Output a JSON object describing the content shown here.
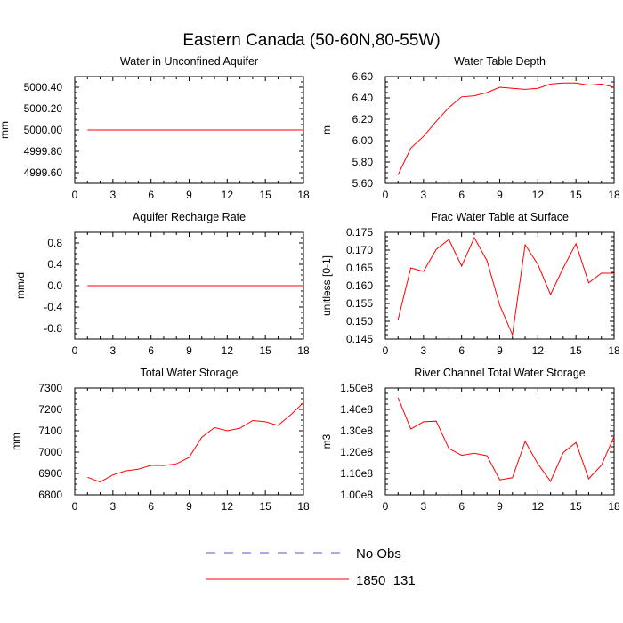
{
  "figure": {
    "title": "Eastern Canada (50-60N,80-55W)"
  },
  "legend": {
    "entries": [
      {
        "label": "No Obs",
        "color": "#5555cc",
        "dash": "dashed"
      },
      {
        "label": "1850_131",
        "color": "#ff0000",
        "dash": "solid"
      }
    ]
  },
  "chart_data": [
    {
      "type": "line",
      "title": "Water in Unconfined Aquifer",
      "ylabel": "mm",
      "xlim": [
        0,
        18
      ],
      "xticks": [
        0,
        3,
        6,
        9,
        12,
        15,
        18
      ],
      "ylim": [
        4999.5,
        5000.5
      ],
      "yticks": [
        4999.6,
        4999.8,
        5000.0,
        5000.2,
        5000.4
      ],
      "ytick_labels": [
        "4999.60",
        "4999.80",
        "5000.00",
        "5000.20",
        "5000.40"
      ],
      "series": [
        {
          "name": "1850_131",
          "color": "#ff0000",
          "x": [
            1,
            2,
            3,
            4,
            5,
            6,
            7,
            8,
            9,
            10,
            11,
            12,
            13,
            14,
            15,
            16,
            17,
            18
          ],
          "y": [
            5000,
            5000,
            5000,
            5000,
            5000,
            5000,
            5000,
            5000,
            5000,
            5000,
            5000,
            5000,
            5000,
            5000,
            5000,
            5000,
            5000,
            5000
          ]
        }
      ]
    },
    {
      "type": "line",
      "title": "Water Table Depth",
      "ylabel": "m",
      "xlim": [
        0,
        18
      ],
      "xticks": [
        0,
        3,
        6,
        9,
        12,
        15,
        18
      ],
      "ylim": [
        5.6,
        6.6
      ],
      "yticks": [
        5.6,
        5.8,
        6.0,
        6.2,
        6.4,
        6.6
      ],
      "ytick_labels": [
        "5.60",
        "5.80",
        "6.00",
        "6.20",
        "6.40",
        "6.60"
      ],
      "series": [
        {
          "name": "1850_131",
          "color": "#ff0000",
          "x": [
            1,
            2,
            3,
            4,
            5,
            6,
            7,
            8,
            9,
            10,
            11,
            12,
            13,
            14,
            15,
            16,
            17,
            18
          ],
          "y": [
            5.68,
            5.93,
            6.04,
            6.18,
            6.31,
            6.41,
            6.42,
            6.45,
            6.5,
            6.49,
            6.48,
            6.49,
            6.53,
            6.54,
            6.54,
            6.52,
            6.53,
            6.5
          ]
        }
      ]
    },
    {
      "type": "line",
      "title": "Aquifer Recharge Rate",
      "ylabel": "mm/d",
      "xlim": [
        0,
        18
      ],
      "xticks": [
        0,
        3,
        6,
        9,
        12,
        15,
        18
      ],
      "ylim": [
        -1.0,
        1.0
      ],
      "yticks": [
        -0.8,
        -0.4,
        0.0,
        0.4,
        0.8
      ],
      "ytick_labels": [
        "-0.8",
        "-0.4",
        "0.0",
        "0.4",
        "0.8"
      ],
      "series": [
        {
          "name": "1850_131",
          "color": "#ff0000",
          "x": [
            1,
            2,
            3,
            4,
            5,
            6,
            7,
            8,
            9,
            10,
            11,
            12,
            13,
            14,
            15,
            16,
            17,
            18
          ],
          "y": [
            0,
            0,
            0,
            0,
            0,
            0,
            0,
            0,
            0,
            0,
            0,
            0,
            0,
            0,
            0,
            0,
            0,
            0
          ]
        }
      ]
    },
    {
      "type": "line",
      "title": "Frac Water Table at Surface",
      "ylabel": "unitless [0-1]",
      "xlim": [
        0,
        18
      ],
      "xticks": [
        0,
        3,
        6,
        9,
        12,
        15,
        18
      ],
      "ylim": [
        0.145,
        0.175
      ],
      "yticks": [
        0.145,
        0.15,
        0.155,
        0.16,
        0.165,
        0.17,
        0.175
      ],
      "ytick_labels": [
        "0.145",
        "0.150",
        "0.155",
        "0.160",
        "0.165",
        "0.170",
        "0.175"
      ],
      "series": [
        {
          "name": "1850_131",
          "color": "#ff0000",
          "x": [
            1,
            2,
            3,
            4,
            5,
            6,
            7,
            8,
            9,
            10,
            11,
            12,
            13,
            14,
            15,
            16,
            17,
            18
          ],
          "y": [
            0.1505,
            0.165,
            0.164,
            0.1702,
            0.173,
            0.1655,
            0.1735,
            0.167,
            0.1545,
            0.1462,
            0.1715,
            0.166,
            0.1575,
            0.165,
            0.1718,
            0.1608,
            0.1635,
            0.1635
          ]
        }
      ]
    },
    {
      "type": "line",
      "title": "Total Water Storage",
      "ylabel": "mm",
      "xlim": [
        0,
        18
      ],
      "xticks": [
        0,
        3,
        6,
        9,
        12,
        15,
        18
      ],
      "ylim": [
        6800,
        7300
      ],
      "yticks": [
        6800,
        6900,
        7000,
        7100,
        7200,
        7300
      ],
      "ytick_labels": [
        "6800",
        "6900",
        "7000",
        "7100",
        "7200",
        "7300"
      ],
      "series": [
        {
          "name": "1850_131",
          "color": "#ff0000",
          "x": [
            1,
            2,
            3,
            4,
            5,
            6,
            7,
            8,
            9,
            10,
            11,
            12,
            13,
            14,
            15,
            16,
            17,
            18
          ],
          "y": [
            6882,
            6860,
            6893,
            6912,
            6920,
            6938,
            6937,
            6945,
            6975,
            7070,
            7115,
            7100,
            7112,
            7148,
            7142,
            7125,
            7175,
            7232
          ]
        }
      ]
    },
    {
      "type": "line",
      "title": "River Channel Total Water Storage",
      "ylabel": "m3",
      "xlim": [
        0,
        18
      ],
      "xticks": [
        0,
        3,
        6,
        9,
        12,
        15,
        18
      ],
      "ylim": [
        100000000,
        150000000
      ],
      "yticks": [
        100000000,
        110000000,
        120000000,
        130000000,
        140000000,
        150000000
      ],
      "ytick_labels": [
        "1.00e8",
        "1.10e8",
        "1.20e8",
        "1.30e8",
        "1.40e8",
        "1.50e8"
      ],
      "series": [
        {
          "name": "1850_131",
          "color": "#ff0000",
          "x": [
            1,
            2,
            3,
            4,
            5,
            6,
            7,
            8,
            9,
            10,
            11,
            12,
            13,
            14,
            15,
            16,
            17,
            18
          ],
          "y": [
            145500000,
            130800000,
            134200000,
            134500000,
            121700000,
            118500000,
            119500000,
            118300000,
            107000000,
            108000000,
            125000000,
            114500000,
            106300000,
            119800000,
            124500000,
            107500000,
            113800000,
            127300000
          ]
        }
      ]
    }
  ]
}
